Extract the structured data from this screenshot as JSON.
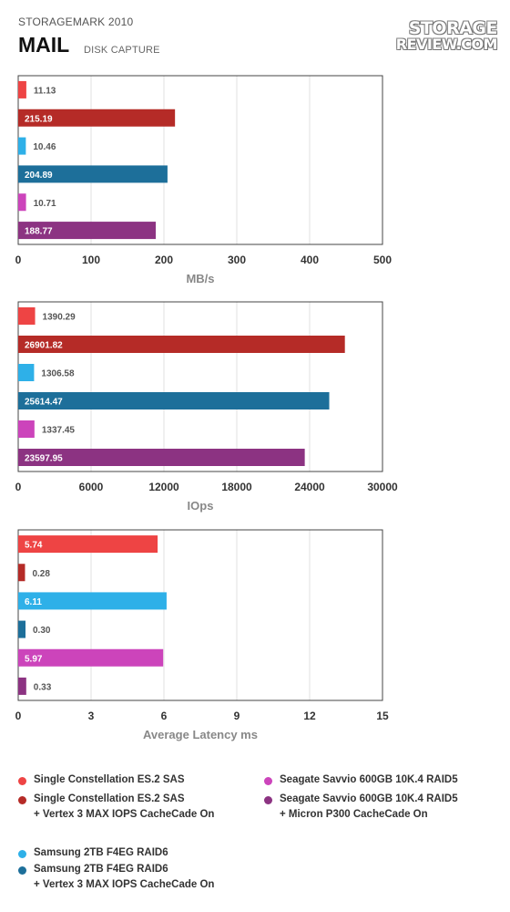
{
  "header": {
    "supertitle": "STORAGEMARK 2010",
    "title": "MAIL",
    "subtitle": "DISK CAPTURE",
    "logo_line1": "STORAGE",
    "logo_line2": "REVIEW.COM"
  },
  "chart_data": [
    {
      "type": "bar",
      "orientation": "horizontal",
      "xlabel": "MB/s",
      "xlim": [
        0,
        500
      ],
      "xticks": [
        "0",
        "100",
        "200",
        "300",
        "400",
        "500"
      ],
      "values": [
        11.13,
        215.19,
        10.46,
        204.89,
        10.71,
        188.77
      ],
      "labels": [
        "11.13",
        "215.19",
        "10.46",
        "204.89",
        "10.71",
        "188.77"
      ],
      "grid": true
    },
    {
      "type": "bar",
      "orientation": "horizontal",
      "xlabel": "IOps",
      "xlim": [
        0,
        30000
      ],
      "xticks": [
        "0",
        "6000",
        "12000",
        "18000",
        "24000",
        "30000"
      ],
      "values": [
        1390.29,
        26901.82,
        1306.58,
        25614.47,
        1337.45,
        23597.95
      ],
      "labels": [
        "1390.29",
        "26901.82",
        "1306.58",
        "25614.47",
        "1337.45",
        "23597.95"
      ],
      "grid": true
    },
    {
      "type": "bar",
      "orientation": "horizontal",
      "xlabel": "Average Latency ms",
      "xlim": [
        0,
        15
      ],
      "xticks": [
        "0",
        "3",
        "6",
        "9",
        "12",
        "15"
      ],
      "values": [
        5.74,
        0.28,
        6.11,
        0.3,
        5.97,
        0.33
      ],
      "labels": [
        "5.74",
        "0.28",
        "6.11",
        "0.30",
        "5.97",
        "0.33"
      ],
      "grid": true
    }
  ],
  "series_colors": [
    "#ee4444",
    "#b52b27",
    "#2eb0e8",
    "#1d6f9a",
    "#cc44bb",
    "#8c3382"
  ],
  "legend": [
    {
      "line1": "Single Constellation ES.2 SAS",
      "line2": "",
      "color": "#ee4444"
    },
    {
      "line1": "Single Constellation ES.2 SAS",
      "line2": "+ Vertex 3 MAX IOPS CacheCade On",
      "color": "#b52b27"
    },
    {
      "line1": "Samsung 2TB F4EG RAID6",
      "line2": "",
      "color": "#2eb0e8"
    },
    {
      "line1": "Samsung 2TB F4EG RAID6",
      "line2": "+ Vertex 3 MAX IOPS CacheCade On",
      "color": "#1d6f9a"
    },
    {
      "line1": "Seagate Savvio 600GB 10K.4 RAID5",
      "line2": "",
      "color": "#cc44bb"
    },
    {
      "line1": "Seagate Savvio 600GB 10K.4 RAID5",
      "line2": "+ Micron P300 CacheCade On",
      "color": "#8c3382"
    }
  ]
}
